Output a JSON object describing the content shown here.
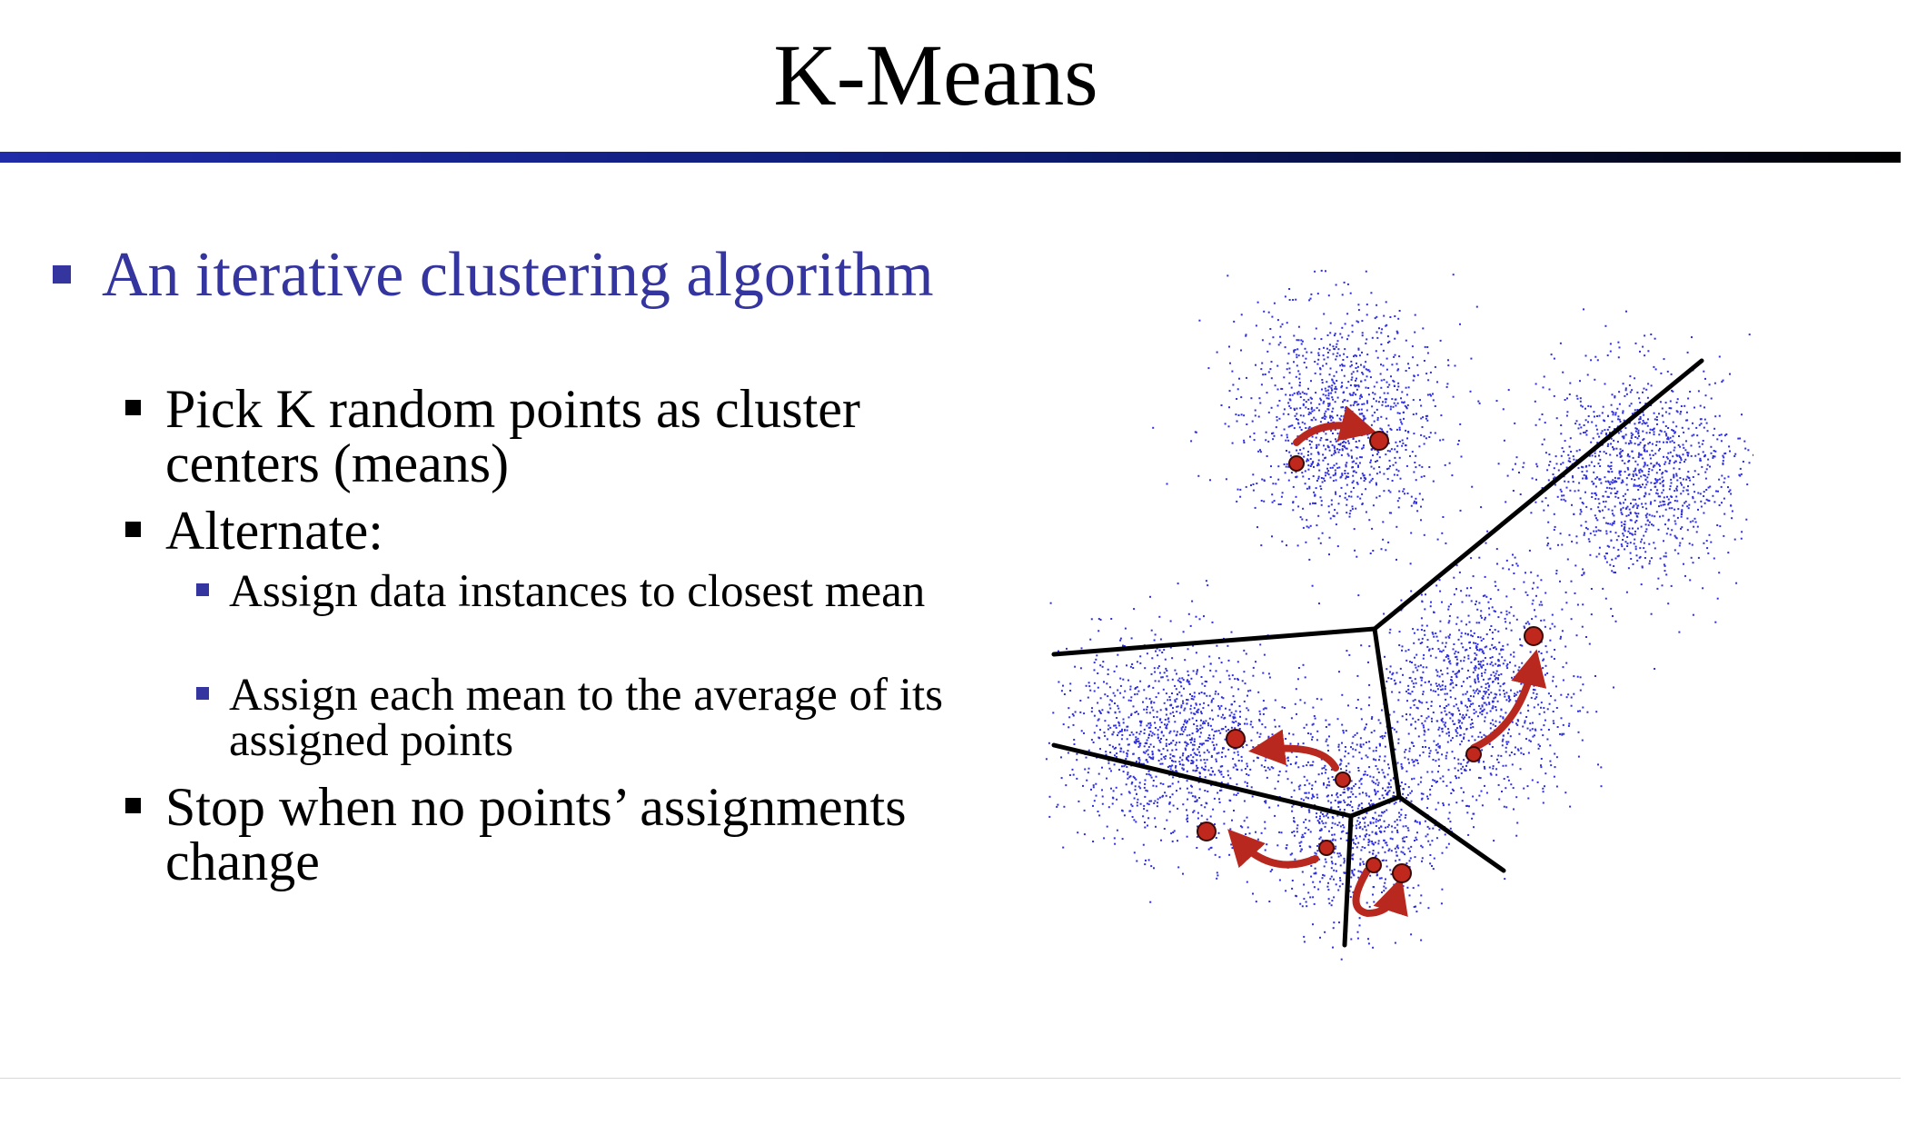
{
  "slide": {
    "title": "K-Means",
    "bullets": [
      {
        "level": 1,
        "text": "An iterative clustering algorithm"
      },
      {
        "level": 2,
        "text": "Pick K random points as cluster centers (means)"
      },
      {
        "level": 2,
        "text": "Alternate:"
      },
      {
        "level": 3,
        "text": "Assign data instances to closest mean"
      },
      {
        "level": 3,
        "text": "Assign each mean to the average of its assigned points"
      },
      {
        "level": 2,
        "text": "Stop when no points’ assignments change"
      }
    ]
  },
  "figure": {
    "point_color": "#2f2fe0",
    "mean_color": "#c0281e",
    "arrow_color": "#b8281e",
    "boundary_color": "#000000"
  }
}
